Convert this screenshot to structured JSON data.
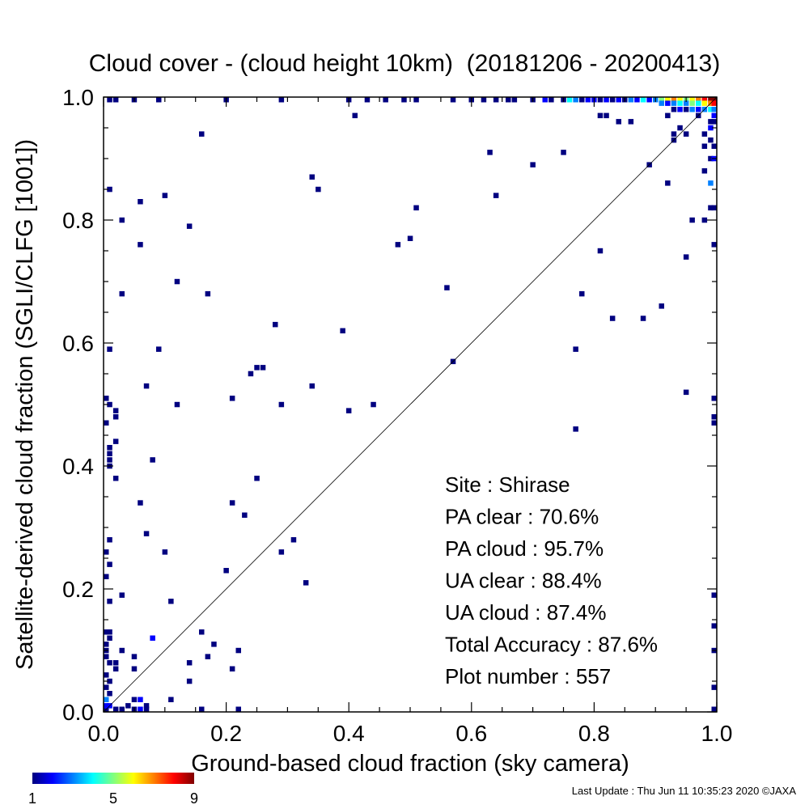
{
  "chart_data": {
    "type": "heatmap",
    "title": "Cloud cover - (cloud height 10km)  (20181206 - 20200413)",
    "xlabel": "Ground-based cloud fraction (sky camera)",
    "ylabel": "Satellite-derived cloud fraction (SGLI/CLFG [1001])",
    "xlim": [
      0.0,
      1.0
    ],
    "ylim": [
      0.0,
      1.0
    ],
    "xticks": [
      "0.0",
      "0.2",
      "0.4",
      "0.6",
      "0.8",
      "1.0"
    ],
    "yticks": [
      "0.0",
      "0.2",
      "0.4",
      "0.6",
      "0.8",
      "1.0"
    ],
    "reference_line": "y = x",
    "colorbar": {
      "min": 1,
      "max": 9,
      "ticks": [
        "1",
        "5",
        "9"
      ],
      "colormap": "jet"
    },
    "annotations": [
      "Site : Shirase",
      "PA clear :  70.6%",
      "PA cloud :  95.7%",
      "UA clear :  88.4%",
      "UA cloud :  87.4%",
      "Total Accuracy :  87.6%",
      "Plot number :       557"
    ],
    "cells": [
      [
        0.01,
        0.85,
        1
      ],
      [
        0.03,
        0.8,
        1
      ],
      [
        0.06,
        0.83,
        1
      ],
      [
        0.1,
        0.84,
        1
      ],
      [
        0.06,
        0.76,
        1
      ],
      [
        0.14,
        0.79,
        1
      ],
      [
        0.16,
        0.94,
        1
      ],
      [
        0.03,
        0.68,
        1
      ],
      [
        0.12,
        0.7,
        1
      ],
      [
        0.17,
        0.68,
        1
      ],
      [
        0.01,
        0.59,
        1
      ],
      [
        0.09,
        0.59,
        1
      ],
      [
        0.07,
        0.53,
        1
      ],
      [
        0.12,
        0.5,
        1
      ],
      [
        0.21,
        0.51,
        1
      ],
      [
        0.24,
        0.55,
        1
      ],
      [
        0.25,
        0.56,
        1
      ],
      [
        0.26,
        0.56,
        1
      ],
      [
        0.28,
        0.63,
        1
      ],
      [
        0.29,
        0.5,
        1
      ],
      [
        0.34,
        0.53,
        1
      ],
      [
        0.34,
        0.87,
        1
      ],
      [
        0.35,
        0.85,
        1
      ],
      [
        0.39,
        0.62,
        1
      ],
      [
        0.4,
        0.49,
        1
      ],
      [
        0.41,
        0.97,
        1
      ],
      [
        0.44,
        0.5,
        1
      ],
      [
        0.48,
        0.76,
        1
      ],
      [
        0.5,
        0.77,
        1
      ],
      [
        0.51,
        0.82,
        1
      ],
      [
        0.56,
        0.69,
        1
      ],
      [
        0.57,
        0.57,
        1
      ],
      [
        0.63,
        0.91,
        1
      ],
      [
        0.64,
        0.84,
        1
      ],
      [
        0.7,
        0.89,
        1
      ],
      [
        0.75,
        0.91,
        1
      ],
      [
        0.77,
        0.59,
        1
      ],
      [
        0.77,
        0.46,
        1
      ],
      [
        0.78,
        0.68,
        1
      ],
      [
        0.81,
        0.75,
        1
      ],
      [
        0.83,
        0.64,
        1
      ],
      [
        0.88,
        0.64,
        1
      ],
      [
        0.89,
        0.89,
        1
      ],
      [
        0.91,
        0.66,
        1
      ],
      [
        0.92,
        0.86,
        1
      ],
      [
        0.95,
        0.74,
        1
      ],
      [
        0.95,
        0.52,
        1
      ],
      [
        0.96,
        0.8,
        1
      ],
      [
        0.0,
        0.51,
        1
      ],
      [
        0.0,
        0.47,
        1
      ],
      [
        0.01,
        0.5,
        1
      ],
      [
        0.02,
        0.49,
        1
      ],
      [
        0.02,
        0.48,
        1
      ],
      [
        0.02,
        0.44,
        1
      ],
      [
        0.01,
        0.43,
        1
      ],
      [
        0.01,
        0.42,
        1
      ],
      [
        0.01,
        0.41,
        1
      ],
      [
        0.01,
        0.4,
        1
      ],
      [
        0.02,
        0.38,
        1
      ],
      [
        0.08,
        0.41,
        1
      ],
      [
        0.06,
        0.34,
        1
      ],
      [
        0.07,
        0.29,
        1
      ],
      [
        0.01,
        0.28,
        1
      ],
      [
        0.0,
        0.26,
        1
      ],
      [
        0.1,
        0.26,
        1
      ],
      [
        0.01,
        0.24,
        1
      ],
      [
        0.0,
        0.22,
        1
      ],
      [
        0.03,
        0.19,
        1
      ],
      [
        0.01,
        0.18,
        1
      ],
      [
        0.11,
        0.18,
        1
      ],
      [
        0.21,
        0.34,
        1
      ],
      [
        0.23,
        0.32,
        1
      ],
      [
        0.25,
        0.38,
        1
      ],
      [
        0.29,
        0.26,
        1
      ],
      [
        0.31,
        0.28,
        1
      ],
      [
        0.33,
        0.21,
        1
      ],
      [
        0.2,
        0.23,
        1
      ],
      [
        0.01,
        0.13,
        1
      ],
      [
        0.0,
        0.13,
        1
      ],
      [
        0.01,
        0.12,
        1
      ],
      [
        0.08,
        0.12,
        2
      ],
      [
        0.16,
        0.13,
        1
      ],
      [
        0.18,
        0.11,
        1
      ],
      [
        0.22,
        0.1,
        1
      ],
      [
        0.17,
        0.09,
        1
      ],
      [
        0.14,
        0.08,
        1
      ],
      [
        0.21,
        0.07,
        1
      ],
      [
        0.14,
        0.05,
        1
      ],
      [
        0.11,
        0.02,
        1
      ],
      [
        0.16,
        0.0,
        1
      ],
      [
        0.22,
        0.0,
        1
      ],
      [
        0.0,
        0.11,
        1
      ],
      [
        0.0,
        0.1,
        1
      ],
      [
        0.0,
        0.09,
        1
      ],
      [
        0.01,
        0.08,
        1
      ],
      [
        0.02,
        0.08,
        1
      ],
      [
        0.03,
        0.1,
        1
      ],
      [
        0.05,
        0.09,
        1
      ],
      [
        0.0,
        0.06,
        1
      ],
      [
        0.01,
        0.05,
        1
      ],
      [
        0.02,
        0.07,
        1
      ],
      [
        0.05,
        0.07,
        1
      ],
      [
        0.0,
        0.04,
        1
      ],
      [
        0.01,
        0.03,
        1
      ],
      [
        0.0,
        0.02,
        3
      ],
      [
        0.01,
        0.01,
        2
      ],
      [
        0.0,
        0.0,
        1
      ],
      [
        0.02,
        0.0,
        1
      ],
      [
        0.03,
        0.0,
        1
      ],
      [
        0.04,
        0.01,
        1
      ],
      [
        0.05,
        0.02,
        1
      ],
      [
        0.06,
        0.02,
        2
      ],
      [
        0.07,
        0.01,
        1
      ],
      [
        0.05,
        0.0,
        1
      ],
      [
        0.06,
        0.0,
        2
      ],
      [
        0.07,
        0.0,
        1
      ],
      [
        0.0,
        0.01,
        2
      ],
      [
        0.01,
        1.0,
        1
      ],
      [
        0.02,
        1.0,
        1
      ],
      [
        0.05,
        1.0,
        1
      ],
      [
        0.09,
        1.0,
        1
      ],
      [
        0.2,
        1.0,
        1
      ],
      [
        0.29,
        1.0,
        1
      ],
      [
        0.4,
        1.0,
        1
      ],
      [
        0.43,
        1.0,
        1
      ],
      [
        0.46,
        1.0,
        1
      ],
      [
        0.49,
        1.0,
        1
      ],
      [
        0.51,
        1.0,
        1
      ],
      [
        0.57,
        1.0,
        1
      ],
      [
        0.6,
        1.0,
        1
      ],
      [
        0.62,
        1.0,
        1
      ],
      [
        0.64,
        1.0,
        1
      ],
      [
        0.66,
        1.0,
        1
      ],
      [
        0.67,
        1.0,
        1
      ],
      [
        0.7,
        1.0,
        1
      ],
      [
        0.72,
        1.0,
        2
      ],
      [
        0.73,
        1.0,
        1
      ],
      [
        0.75,
        1.0,
        1
      ],
      [
        0.76,
        1.0,
        4
      ],
      [
        0.77,
        1.0,
        3
      ],
      [
        0.78,
        1.0,
        1
      ],
      [
        0.79,
        1.0,
        2
      ],
      [
        0.8,
        1.0,
        2
      ],
      [
        0.81,
        1.0,
        1
      ],
      [
        0.82,
        1.0,
        2
      ],
      [
        0.83,
        1.0,
        1
      ],
      [
        0.84,
        1.0,
        2
      ],
      [
        0.85,
        1.0,
        1
      ],
      [
        0.86,
        1.0,
        3
      ],
      [
        0.87,
        1.0,
        2
      ],
      [
        0.88,
        1.0,
        4
      ],
      [
        0.89,
        1.0,
        2
      ],
      [
        0.9,
        1.0,
        3
      ],
      [
        0.91,
        1.0,
        5
      ],
      [
        0.92,
        1.0,
        6
      ],
      [
        0.93,
        1.0,
        7
      ],
      [
        0.94,
        1.0,
        6
      ],
      [
        0.95,
        1.0,
        5
      ],
      [
        0.96,
        1.0,
        6
      ],
      [
        0.97,
        1.0,
        7
      ],
      [
        0.98,
        1.0,
        8
      ],
      [
        0.99,
        1.0,
        9
      ],
      [
        1.0,
        1.0,
        9
      ],
      [
        0.91,
        0.99,
        3
      ],
      [
        0.92,
        0.99,
        2
      ],
      [
        0.93,
        0.99,
        3
      ],
      [
        0.94,
        0.99,
        4
      ],
      [
        0.95,
        0.99,
        3
      ],
      [
        0.96,
        0.99,
        5
      ],
      [
        0.97,
        0.99,
        4
      ],
      [
        0.98,
        0.99,
        6
      ],
      [
        0.99,
        0.99,
        7
      ],
      [
        1.0,
        0.99,
        8
      ],
      [
        0.93,
        0.98,
        1
      ],
      [
        0.94,
        0.98,
        2
      ],
      [
        0.95,
        0.98,
        1
      ],
      [
        0.96,
        0.98,
        3
      ],
      [
        0.97,
        0.98,
        2
      ],
      [
        0.98,
        0.98,
        3
      ],
      [
        0.99,
        0.98,
        4
      ],
      [
        1.0,
        0.98,
        3
      ],
      [
        0.81,
        0.97,
        1
      ],
      [
        0.82,
        0.97,
        1
      ],
      [
        0.92,
        0.97,
        1
      ],
      [
        0.97,
        0.97,
        1
      ],
      [
        1.0,
        0.97,
        2
      ],
      [
        0.84,
        0.96,
        1
      ],
      [
        0.86,
        0.96,
        1
      ],
      [
        0.99,
        0.96,
        1
      ],
      [
        1.0,
        0.96,
        1
      ],
      [
        0.94,
        0.95,
        1
      ],
      [
        0.99,
        0.95,
        2
      ],
      [
        0.93,
        0.94,
        1
      ],
      [
        0.95,
        0.94,
        1
      ],
      [
        0.98,
        0.94,
        1
      ],
      [
        0.93,
        0.93,
        1
      ],
      [
        0.99,
        0.93,
        1
      ],
      [
        0.98,
        0.92,
        1
      ],
      [
        1.0,
        0.92,
        1
      ],
      [
        0.99,
        0.9,
        1
      ],
      [
        1.0,
        0.9,
        2
      ],
      [
        0.98,
        0.88,
        1
      ],
      [
        0.99,
        0.86,
        3
      ],
      [
        1.0,
        0.82,
        1
      ],
      [
        0.99,
        0.82,
        1
      ],
      [
        0.98,
        0.8,
        1
      ],
      [
        1.0,
        0.76,
        1
      ],
      [
        1.0,
        0.51,
        1
      ],
      [
        1.0,
        0.48,
        1
      ],
      [
        1.0,
        0.47,
        1
      ],
      [
        1.0,
        0.19,
        1
      ],
      [
        1.0,
        0.14,
        1
      ],
      [
        1.0,
        0.1,
        1
      ],
      [
        1.0,
        0.04,
        1
      ],
      [
        1.0,
        0.0,
        1
      ]
    ]
  },
  "footer": "Last Update : Thu Jun 11 10:35:23 2020  ©JAXA"
}
